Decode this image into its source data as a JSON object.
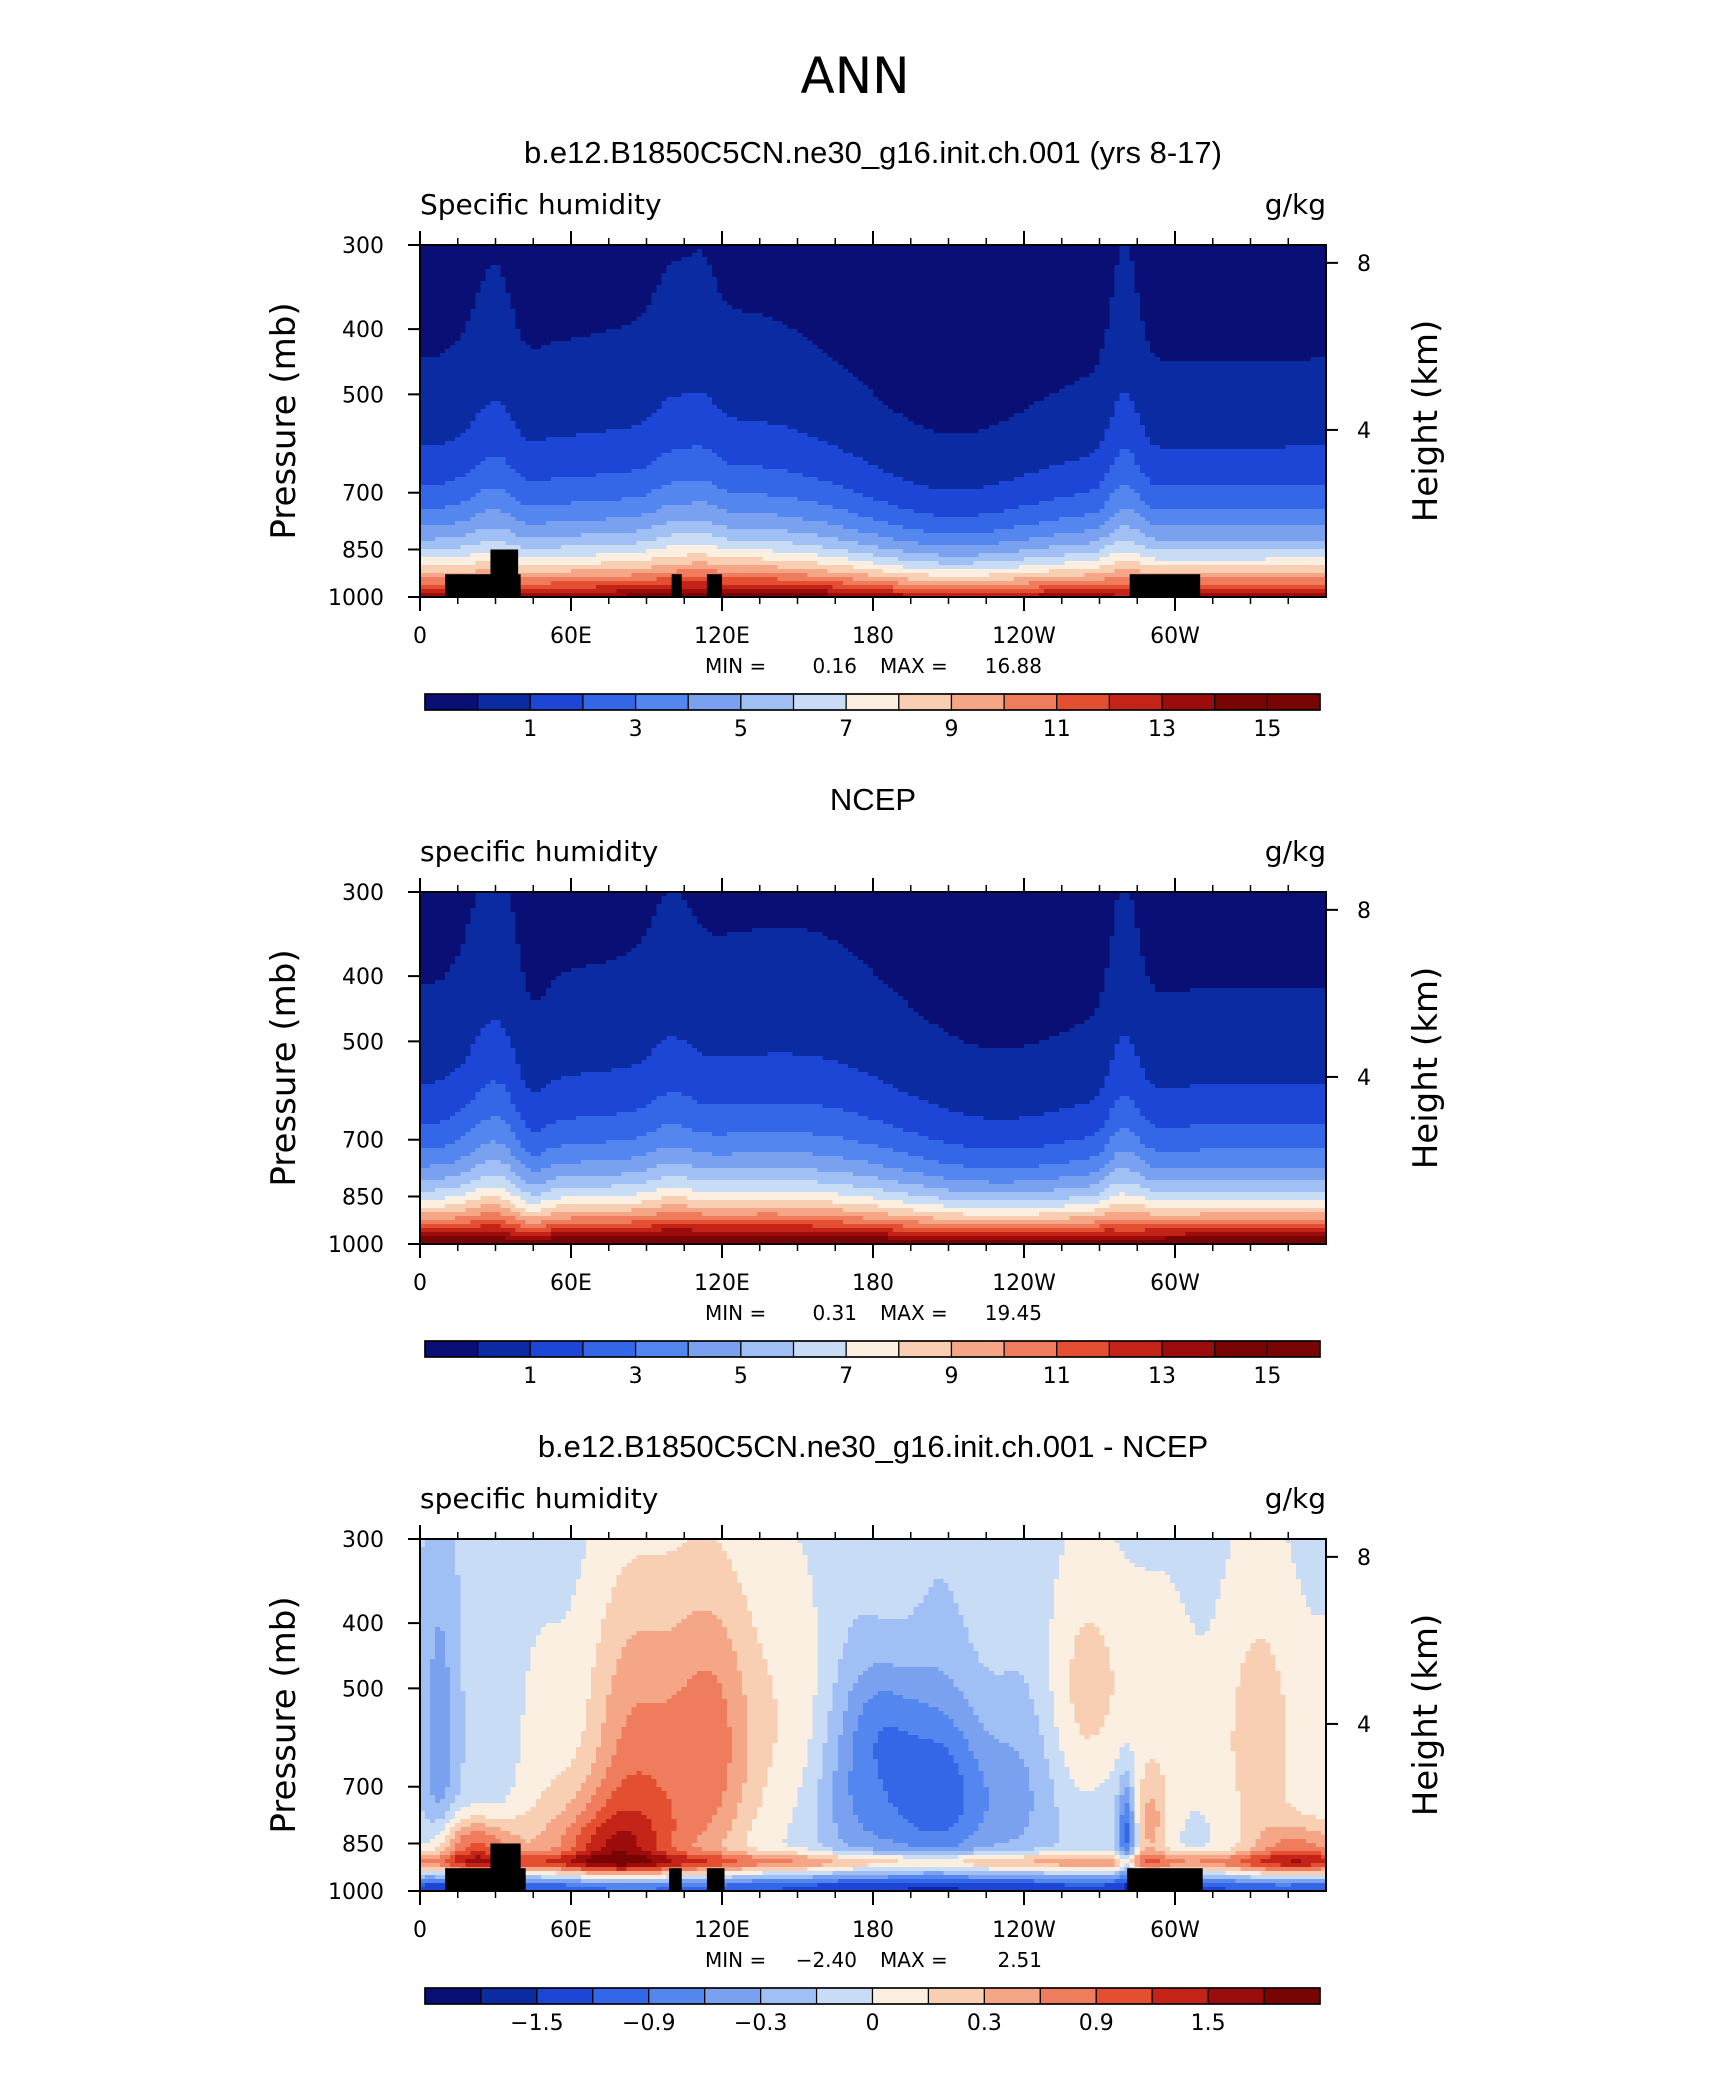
{
  "figure": {
    "title": "ANN"
  },
  "colors": {
    "palette": [
      "#0a0f76",
      "#0b2ba3",
      "#1e46d6",
      "#3367e8",
      "#5386ee",
      "#79a1f0",
      "#a0bff4",
      "#c9dcf6",
      "#faefe0",
      "#f8cfb2",
      "#f4a686",
      "#ef7c5c",
      "#e44f31",
      "#c42418",
      "#9d0c0c",
      "#780404"
    ],
    "land_mask": "#000000"
  },
  "chart_data": [
    {
      "type": "heatmap",
      "panel_title": "b.e12.B1850C5CN.ne30_g16.init.ch.001 (yrs 8-17)",
      "left_label": "Specific humidity",
      "right_label": "g/kg",
      "ylabel": "Pressure (mb)",
      "y2label": "Height (km)",
      "x_ticks": [
        "0",
        "60E",
        "120E",
        "180",
        "120W",
        "60W"
      ],
      "x_tick_values": [
        0,
        60,
        120,
        180,
        240,
        300
      ],
      "xlim": [
        0,
        360
      ],
      "y_ticks": [
        "300",
        "400",
        "500",
        "700",
        "850",
        "1000"
      ],
      "y_tick_values": [
        300,
        400,
        500,
        700,
        850,
        1000
      ],
      "ylim": [
        1000,
        300
      ],
      "y_scale": "log",
      "y2_ticks": [
        "8",
        "4"
      ],
      "y2_tick_values": [
        8,
        4
      ],
      "stats": {
        "min_label": "MIN =",
        "min": "0.16",
        "max_label": "MAX =",
        "max": "16.88"
      },
      "colorbar": {
        "labels": [
          "1",
          "3",
          "5",
          "7",
          "9",
          "11",
          "13",
          "15"
        ],
        "levels": [
          0,
          1,
          2,
          3,
          4,
          5,
          6,
          7,
          8,
          9,
          10,
          11,
          12,
          13,
          14,
          15
        ]
      },
      "field": {
        "kind": "model"
      },
      "land_blocks": [
        {
          "x0": 10,
          "x1": 40,
          "p_top": 925
        },
        {
          "x0": 28,
          "x1": 39,
          "p_top": 850
        },
        {
          "x0": 100,
          "x1": 104,
          "p_top": 925
        },
        {
          "x0": 114,
          "x1": 120,
          "p_top": 925
        },
        {
          "x0": 282,
          "x1": 310,
          "p_top": 925
        }
      ]
    },
    {
      "type": "heatmap",
      "panel_title": "NCEP",
      "left_label": "specific humidity",
      "right_label": "g/kg",
      "ylabel": "Pressure (mb)",
      "y2label": "Height (km)",
      "x_ticks": [
        "0",
        "60E",
        "120E",
        "180",
        "120W",
        "60W"
      ],
      "x_tick_values": [
        0,
        60,
        120,
        180,
        240,
        300
      ],
      "xlim": [
        0,
        360
      ],
      "y_ticks": [
        "300",
        "400",
        "500",
        "700",
        "850",
        "1000"
      ],
      "y_tick_values": [
        300,
        400,
        500,
        700,
        850,
        1000
      ],
      "ylim": [
        1000,
        300
      ],
      "y_scale": "log",
      "y2_ticks": [
        "8",
        "4"
      ],
      "y2_tick_values": [
        8,
        4
      ],
      "stats": {
        "min_label": "MIN =",
        "min": "0.31",
        "max_label": "MAX =",
        "max": "19.45"
      },
      "colorbar": {
        "labels": [
          "1",
          "3",
          "5",
          "7",
          "9",
          "11",
          "13",
          "15"
        ],
        "levels": [
          0,
          1,
          2,
          3,
          4,
          5,
          6,
          7,
          8,
          9,
          10,
          11,
          12,
          13,
          14,
          15
        ]
      },
      "field": {
        "kind": "obs"
      },
      "land_blocks": []
    },
    {
      "type": "heatmap",
      "panel_title": "b.e12.B1850C5CN.ne30_g16.init.ch.001 - NCEP",
      "left_label": "specific humidity",
      "right_label": "g/kg",
      "ylabel": "Pressure (mb)",
      "y2label": "Height (km)",
      "x_ticks": [
        "0",
        "60E",
        "120E",
        "180",
        "120W",
        "60W"
      ],
      "x_tick_values": [
        0,
        60,
        120,
        180,
        240,
        300
      ],
      "xlim": [
        0,
        360
      ],
      "y_ticks": [
        "300",
        "400",
        "500",
        "700",
        "850",
        "1000"
      ],
      "y_tick_values": [
        300,
        400,
        500,
        700,
        850,
        1000
      ],
      "ylim": [
        1000,
        300
      ],
      "y_scale": "log",
      "y2_ticks": [
        "8",
        "4"
      ],
      "y2_tick_values": [
        8,
        4
      ],
      "stats": {
        "min_label": "MIN =",
        "min": "−2.40",
        "max_label": "MAX =",
        "max": "2.51"
      },
      "colorbar": {
        "labels": [
          "−1.5",
          "−0.9",
          "−0.3",
          "0",
          "0.3",
          "0.9",
          "1.5"
        ],
        "levels": [
          -2.1,
          -1.8,
          -1.5,
          -1.2,
          -0.9,
          -0.6,
          -0.3,
          0,
          0.3,
          0.6,
          0.9,
          1.2,
          1.5,
          1.8,
          2.1
        ]
      },
      "field": {
        "kind": "diff"
      },
      "land_blocks": [
        {
          "x0": 10,
          "x1": 42,
          "p_top": 925
        },
        {
          "x0": 28,
          "x1": 40,
          "p_top": 850
        },
        {
          "x0": 99,
          "x1": 104,
          "p_top": 925
        },
        {
          "x0": 114,
          "x1": 121,
          "p_top": 925
        },
        {
          "x0": 281,
          "x1": 311,
          "p_top": 925
        }
      ]
    }
  ]
}
